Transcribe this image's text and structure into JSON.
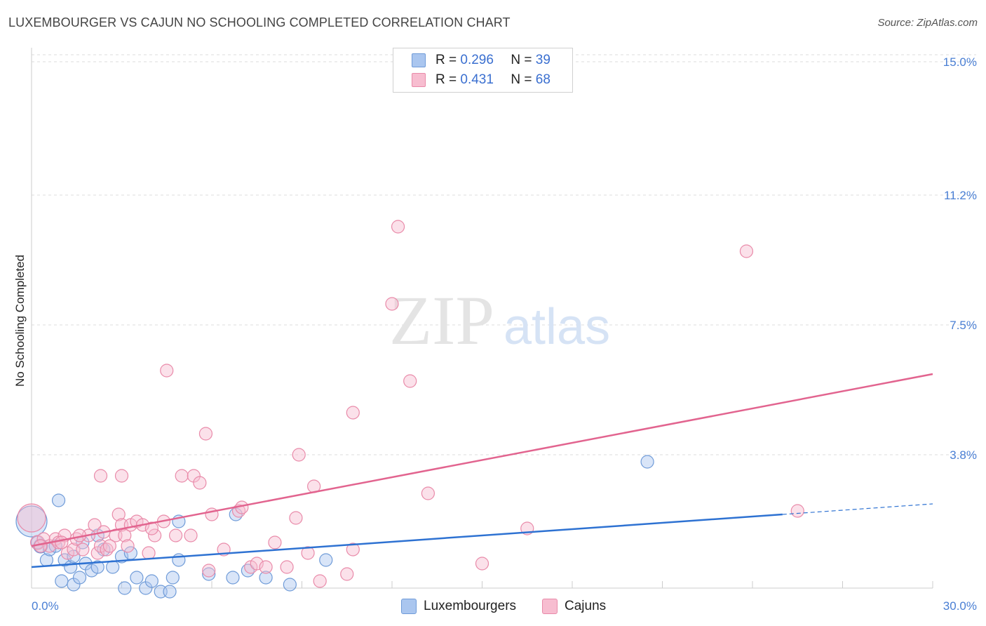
{
  "title": "LUXEMBOURGER VS CAJUN NO SCHOOLING COMPLETED CORRELATION CHART",
  "source": "Source: ZipAtlas.com",
  "watermark": {
    "zip": "ZIP",
    "atlas": "atlas"
  },
  "legend": {
    "r_label": "R =",
    "n_label": "N =",
    "series": [
      {
        "name": "Luxembourgers",
        "r": "0.296",
        "n": "39",
        "fill": "#aac6ef",
        "stroke": "#6f9bd8"
      },
      {
        "name": "Cajuns",
        "r": "0.431",
        "n": "68",
        "fill": "#f7bdd0",
        "stroke": "#e98aa9"
      }
    ]
  },
  "colors": {
    "blue_line": "#2e72d2",
    "pink_line": "#e2648f",
    "grid": "#dddddd",
    "tick_text": "#4a7fd4"
  },
  "chart_data": {
    "type": "scatter",
    "title": "LUXEMBOURGER VS CAJUN NO SCHOOLING COMPLETED CORRELATION CHART",
    "xlabel": "",
    "ylabel": "No Schooling Completed",
    "xlim": [
      0,
      30
    ],
    "ylim": [
      0,
      15.4
    ],
    "x_tick_labels": [
      "0.0%",
      "30.0%"
    ],
    "y_ticks": [
      3.8,
      7.5,
      11.2,
      15.0
    ],
    "y_tick_labels": [
      "3.8%",
      "7.5%",
      "11.2%",
      "15.0%"
    ],
    "grid": true,
    "legend_position": "top-center",
    "series": [
      {
        "name": "Luxembourgers",
        "r": 0.296,
        "n": 39,
        "trend": {
          "x0": 0,
          "y0": 0.6,
          "x1": 25.0,
          "y1": 2.1,
          "dashed_to_x": 30.0,
          "dashed_to_y": 2.4
        },
        "points": [
          [
            0.0,
            1.9,
            22
          ],
          [
            0.3,
            1.2,
            10
          ],
          [
            0.5,
            0.8,
            9
          ],
          [
            0.6,
            1.1,
            9
          ],
          [
            0.8,
            1.2,
            9
          ],
          [
            0.9,
            2.5,
            9
          ],
          [
            1.0,
            0.2,
            9
          ],
          [
            1.1,
            0.8,
            9
          ],
          [
            1.3,
            0.6,
            9
          ],
          [
            1.4,
            0.9,
            9
          ],
          [
            1.4,
            0.1,
            9
          ],
          [
            1.6,
            0.3,
            9
          ],
          [
            1.8,
            0.7,
            9
          ],
          [
            2.0,
            0.5,
            9
          ],
          [
            2.2,
            0.6,
            9
          ],
          [
            2.2,
            1.5,
            9
          ],
          [
            2.4,
            1.1,
            9
          ],
          [
            2.7,
            0.6,
            9
          ],
          [
            3.0,
            0.9,
            9
          ],
          [
            3.1,
            0.0,
            9
          ],
          [
            3.3,
            1.0,
            9
          ],
          [
            3.5,
            0.3,
            9
          ],
          [
            3.8,
            0.0,
            9
          ],
          [
            4.0,
            0.2,
            9
          ],
          [
            4.3,
            -0.1,
            9
          ],
          [
            4.6,
            -0.1,
            9
          ],
          [
            4.7,
            0.3,
            9
          ],
          [
            4.9,
            0.8,
            9
          ],
          [
            4.9,
            1.9,
            9
          ],
          [
            5.9,
            0.4,
            9
          ],
          [
            6.7,
            0.3,
            9
          ],
          [
            6.8,
            2.1,
            9
          ],
          [
            7.2,
            0.5,
            9
          ],
          [
            7.8,
            0.3,
            9
          ],
          [
            8.6,
            0.1,
            9
          ],
          [
            9.8,
            0.8,
            9
          ],
          [
            20.5,
            3.6,
            9
          ],
          [
            0.2,
            1.3,
            9
          ],
          [
            1.7,
            1.3,
            9
          ]
        ]
      },
      {
        "name": "Cajuns",
        "r": 0.431,
        "n": 68,
        "trend": {
          "x0": 0,
          "y0": 1.2,
          "x1": 30.0,
          "y1": 6.1
        },
        "points": [
          [
            0.0,
            2.0,
            20
          ],
          [
            0.2,
            1.3,
            10
          ],
          [
            0.4,
            1.4,
            9
          ],
          [
            0.6,
            1.2,
            9
          ],
          [
            0.8,
            1.4,
            9
          ],
          [
            0.9,
            1.3,
            9
          ],
          [
            1.1,
            1.5,
            9
          ],
          [
            1.2,
            1.0,
            9
          ],
          [
            1.4,
            1.1,
            9
          ],
          [
            1.5,
            1.4,
            9
          ],
          [
            1.7,
            1.1,
            9
          ],
          [
            1.9,
            1.5,
            9
          ],
          [
            2.1,
            1.8,
            9
          ],
          [
            2.2,
            1.0,
            9
          ],
          [
            2.3,
            1.2,
            9
          ],
          [
            2.4,
            1.6,
            9
          ],
          [
            2.5,
            1.1,
            9
          ],
          [
            2.8,
            1.5,
            9
          ],
          [
            2.9,
            2.1,
            9
          ],
          [
            3.0,
            1.8,
            9
          ],
          [
            3.1,
            1.5,
            9
          ],
          [
            3.2,
            1.2,
            9
          ],
          [
            3.3,
            1.8,
            9
          ],
          [
            3.5,
            1.9,
            9
          ],
          [
            3.7,
            1.8,
            9
          ],
          [
            3.9,
            1.0,
            9
          ],
          [
            4.1,
            1.5,
            9
          ],
          [
            4.4,
            1.9,
            9
          ],
          [
            4.5,
            6.2,
            9
          ],
          [
            4.8,
            1.5,
            9
          ],
          [
            5.0,
            3.2,
            9
          ],
          [
            5.3,
            1.5,
            9
          ],
          [
            5.4,
            3.2,
            9
          ],
          [
            5.6,
            3.0,
            9
          ],
          [
            5.8,
            4.4,
            9
          ],
          [
            5.9,
            0.5,
            9
          ],
          [
            6.0,
            2.1,
            9
          ],
          [
            6.4,
            1.1,
            9
          ],
          [
            6.9,
            2.2,
            9
          ],
          [
            7.3,
            0.6,
            9
          ],
          [
            7.5,
            0.7,
            9
          ],
          [
            7.8,
            0.6,
            9
          ],
          [
            8.1,
            1.3,
            9
          ],
          [
            8.5,
            0.6,
            9
          ],
          [
            8.8,
            2.0,
            9
          ],
          [
            8.9,
            3.8,
            9
          ],
          [
            9.2,
            1.0,
            9
          ],
          [
            9.4,
            2.9,
            9
          ],
          [
            9.6,
            0.2,
            9
          ],
          [
            10.5,
            0.4,
            9
          ],
          [
            10.7,
            1.1,
            9
          ],
          [
            10.7,
            5.0,
            9
          ],
          [
            12.0,
            8.1,
            9
          ],
          [
            12.2,
            10.3,
            9
          ],
          [
            12.6,
            5.9,
            9
          ],
          [
            13.2,
            2.7,
            9
          ],
          [
            15.0,
            0.7,
            9
          ],
          [
            16.5,
            1.7,
            9
          ],
          [
            23.8,
            9.6,
            9
          ],
          [
            25.5,
            2.2,
            9
          ],
          [
            3.0,
            3.2,
            9
          ],
          [
            2.3,
            3.2,
            9
          ],
          [
            0.3,
            1.2,
            9
          ],
          [
            1.0,
            1.3,
            9
          ],
          [
            1.6,
            1.5,
            9
          ],
          [
            2.6,
            1.2,
            9
          ],
          [
            4.0,
            1.7,
            9
          ],
          [
            7.0,
            2.3,
            9
          ]
        ]
      }
    ]
  }
}
